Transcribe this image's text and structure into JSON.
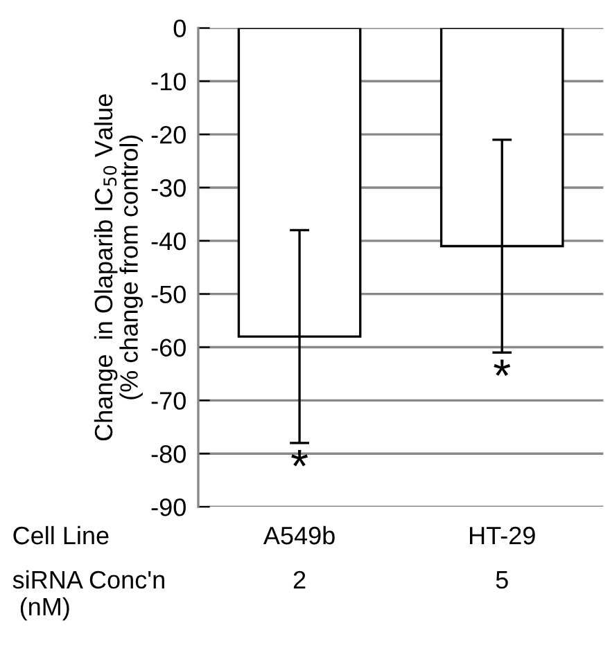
{
  "chart_data": {
    "type": "bar",
    "ylabel": "Change  in Olaparib IC$_{50}$ Value\n(% change from control)",
    "categories": [
      "A549b",
      "HT-29"
    ],
    "values": [
      -58,
      -41
    ],
    "errors": [
      20,
      20
    ],
    "color": "#ffffff",
    "ylim": [
      -90,
      0
    ],
    "yticks": [
      0,
      -10,
      -20,
      -30,
      -40,
      -50,
      -60,
      -70,
      -80,
      -90
    ],
    "grid": "y",
    "annotations": [
      "Cell Line",
      "siRNA Conc'n\n (nM)",
      "2",
      "5",
      "*",
      "*"
    ]
  }
}
